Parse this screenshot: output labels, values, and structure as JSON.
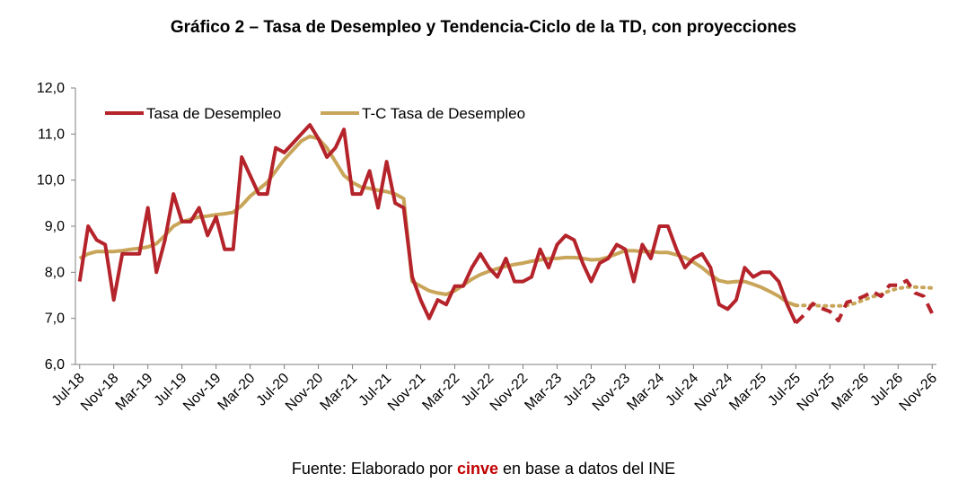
{
  "title": "Gráfico 2 – Tasa de Desempleo y Tendencia-Ciclo de la TD, con proyecciones",
  "source": {
    "prefix": "Fuente: Elaborado por ",
    "brand": "cinve",
    "suffix": " en base a datos del INE"
  },
  "chart_data": {
    "type": "line",
    "title": "Gráfico 2 – Tasa de Desempleo y Tendencia-Ciclo de la TD, con proyecciones",
    "xlabel": "",
    "ylabel": "",
    "ylim": [
      6.0,
      12.0
    ],
    "y_ticks": [
      "6,0",
      "7,0",
      "8,0",
      "9,0",
      "10,0",
      "11,0",
      "12,0"
    ],
    "x_tick_labels": [
      "Jul-18",
      "Nov-18",
      "Mar-19",
      "Jul-19",
      "Nov-19",
      "Mar-20",
      "Jul-20",
      "Nov-20",
      "Mar-21",
      "Jul-21",
      "Nov-21",
      "Mar-22",
      "Jul-22",
      "Nov-22",
      "Mar-23",
      "Jul-23",
      "Nov-23",
      "Mar-24",
      "Jul-24",
      "Nov-24",
      "Mar-25",
      "Jul-25",
      "Nov-25",
      "Mar-26",
      "Jul-26",
      "Nov-26"
    ],
    "x_start": "Jul-18",
    "frequency": "monthly",
    "grid": false,
    "legend_position": "top-left",
    "series": [
      {
        "name": "Tasa de Desempleo",
        "color": "#b5232b",
        "style": "solid",
        "values": [
          7.8,
          9.0,
          8.7,
          8.6,
          7.4,
          8.4,
          8.4,
          8.4,
          9.4,
          8.0,
          8.7,
          9.7,
          9.1,
          9.1,
          9.4,
          8.8,
          9.2,
          8.5,
          8.5,
          10.5,
          10.1,
          9.7,
          9.7,
          10.7,
          10.6,
          10.8,
          11.0,
          11.2,
          10.9,
          10.5,
          10.7,
          11.1,
          9.7,
          9.7,
          10.2,
          9.4,
          10.4,
          9.5,
          9.4,
          7.9,
          7.4,
          7.0,
          7.4,
          7.3,
          7.7,
          7.7,
          8.1,
          8.4,
          8.1,
          7.9,
          8.3,
          7.8,
          7.8,
          7.9,
          8.5,
          8.1,
          8.6,
          8.8,
          8.7,
          8.2,
          7.8,
          8.2,
          8.3,
          8.6,
          8.5,
          7.8,
          8.6,
          8.3,
          9.0,
          9.0,
          8.5,
          8.1,
          8.3,
          8.4,
          8.1,
          7.3,
          7.2,
          7.4,
          8.1,
          7.9,
          8.0,
          8.0,
          7.8,
          7.3,
          6.9
        ]
      },
      {
        "name": "T-C Tasa de Desempleo",
        "color": "#c9a55a",
        "style": "solid",
        "values": [
          8.3,
          8.4,
          8.45,
          8.45,
          8.45,
          8.47,
          8.5,
          8.52,
          8.55,
          8.62,
          8.8,
          9.0,
          9.1,
          9.15,
          9.2,
          9.22,
          9.25,
          9.27,
          9.3,
          9.45,
          9.65,
          9.8,
          9.95,
          10.2,
          10.45,
          10.65,
          10.85,
          10.95,
          10.9,
          10.7,
          10.4,
          10.1,
          9.95,
          9.85,
          9.82,
          9.78,
          9.75,
          9.7,
          9.6,
          7.8,
          7.7,
          7.6,
          7.55,
          7.52,
          7.6,
          7.72,
          7.85,
          7.95,
          8.02,
          8.08,
          8.13,
          8.17,
          8.2,
          8.24,
          8.27,
          8.3,
          8.3,
          8.32,
          8.32,
          8.3,
          8.27,
          8.28,
          8.33,
          8.4,
          8.47,
          8.47,
          8.45,
          8.45,
          8.43,
          8.43,
          8.38,
          8.32,
          8.22,
          8.1,
          7.95,
          7.82,
          7.78,
          7.8,
          7.8,
          7.74,
          7.67,
          7.58,
          7.48,
          7.35,
          7.28
        ]
      },
      {
        "name": "",
        "color": "#b5232b",
        "style": "dashed",
        "start_index": 84,
        "values": [
          6.9,
          7.08,
          7.32,
          7.22,
          7.15,
          6.95,
          7.35,
          7.4,
          7.48,
          7.58,
          7.48,
          7.72,
          7.72,
          7.82,
          7.55,
          7.48,
          7.1
        ]
      },
      {
        "name": "",
        "color": "#c9a55a",
        "style": "dotted",
        "start_index": 84,
        "values": [
          7.28,
          7.28,
          7.28,
          7.27,
          7.27,
          7.27,
          7.28,
          7.33,
          7.4,
          7.47,
          7.52,
          7.6,
          7.65,
          7.68,
          7.68,
          7.67,
          7.66
        ]
      }
    ]
  }
}
